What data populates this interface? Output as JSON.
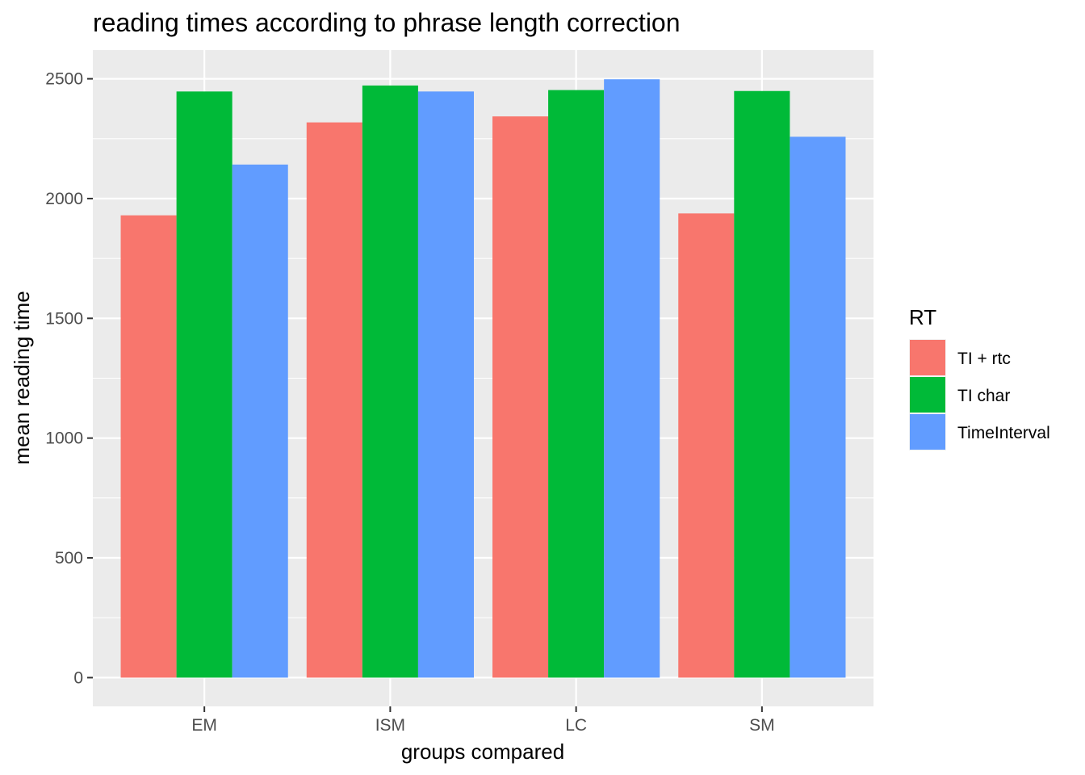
{
  "chart_data": {
    "type": "bar",
    "title": "reading times according to phrase length correction",
    "xlabel": "groups compared",
    "ylabel": "mean reading time",
    "categories": [
      "EM",
      "ISM",
      "LC",
      "SM"
    ],
    "series": [
      {
        "name": "TI + rtc",
        "color": "#F8766D",
        "values": [
          1930,
          2318,
          2343,
          1938
        ]
      },
      {
        "name": "TI char",
        "color": "#00BA38",
        "values": [
          2447,
          2472,
          2453,
          2449
        ]
      },
      {
        "name": "TimeInterval",
        "color": "#619CFF",
        "values": [
          2142,
          2447,
          2498,
          2258
        ]
      }
    ],
    "yticks": [
      0,
      500,
      1000,
      1500,
      2000,
      2500
    ],
    "ylim": [
      -120,
      2620
    ],
    "legend": {
      "title": "RT",
      "position": "right"
    },
    "grid": true,
    "colors": {
      "panel": "#EBEBEB",
      "grid": "#FFFFFF"
    }
  }
}
